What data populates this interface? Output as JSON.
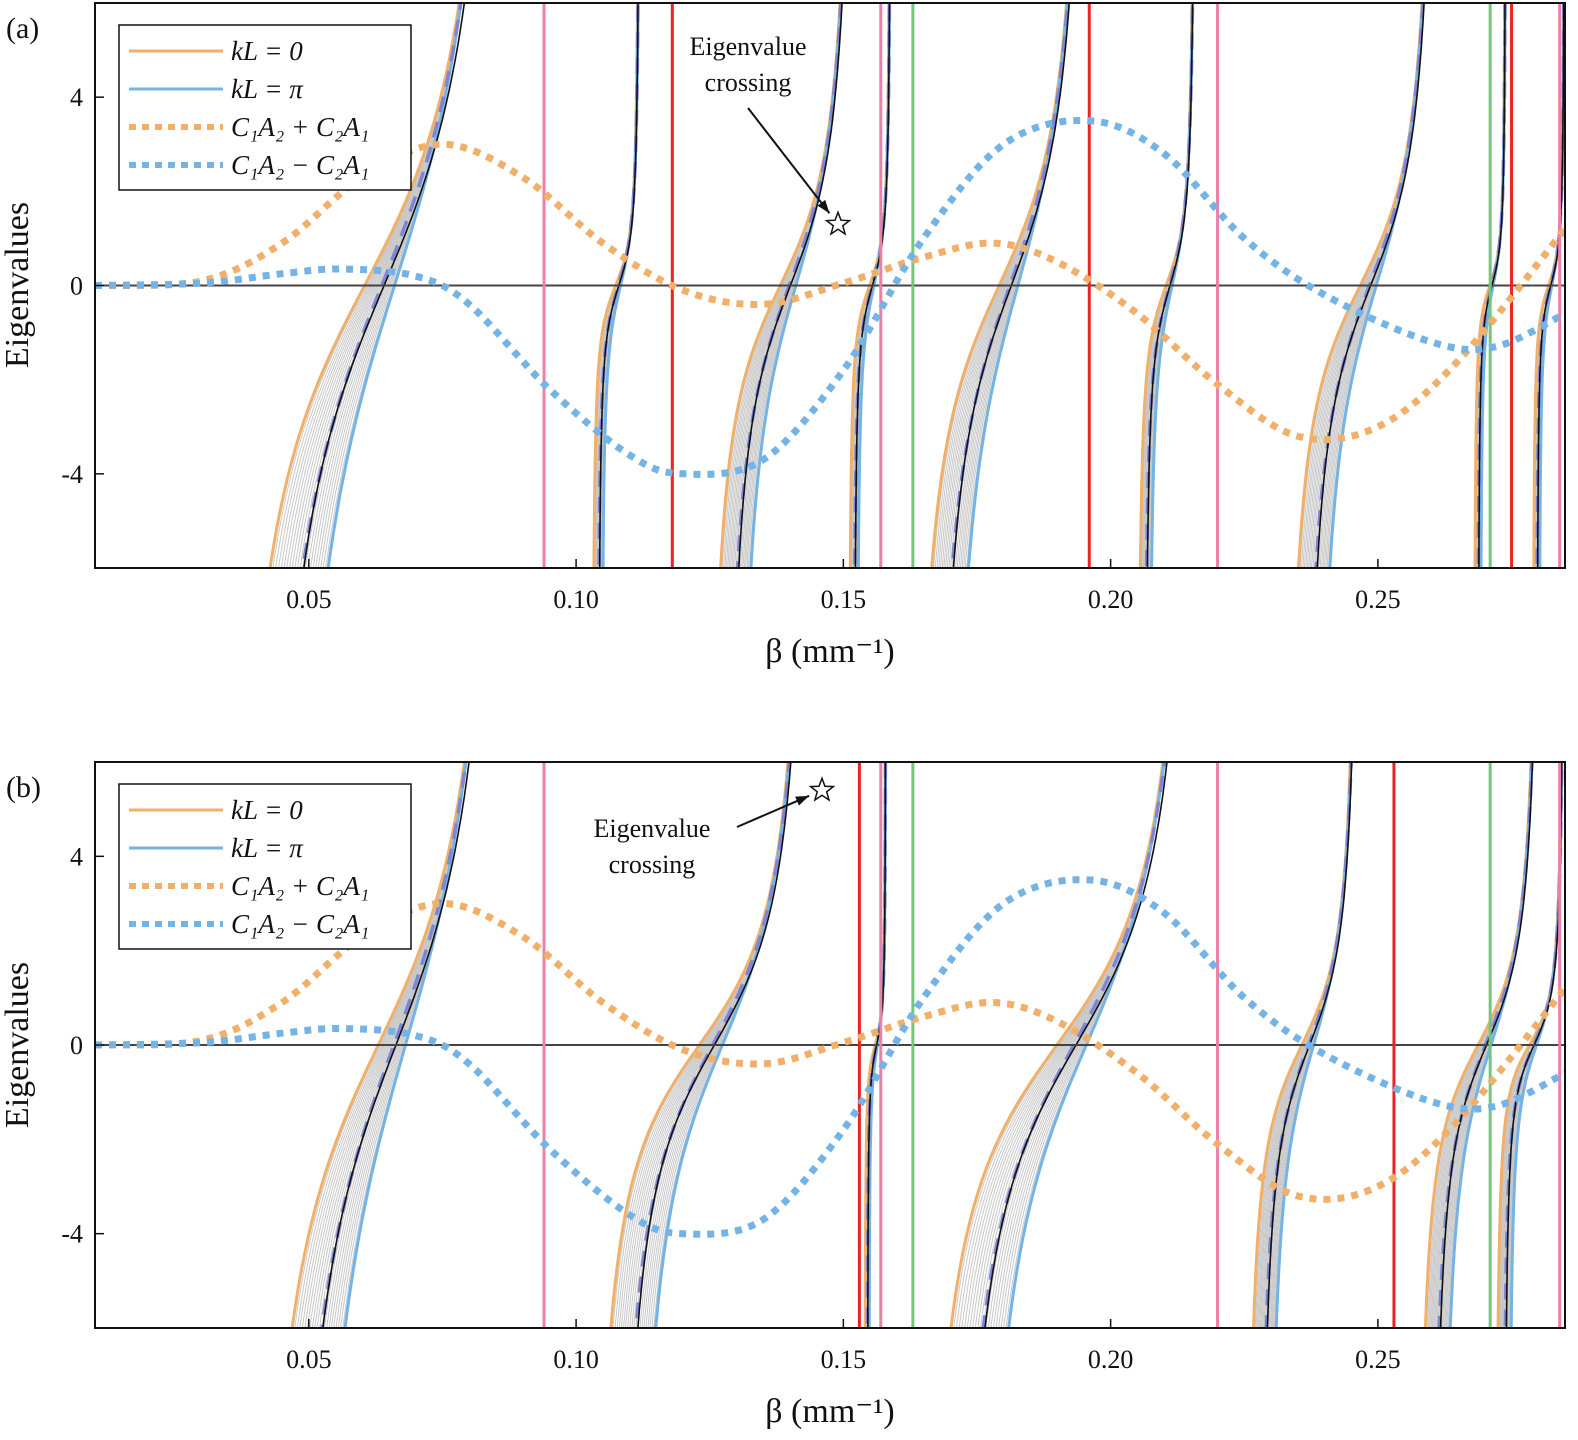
{
  "colors": {
    "kL0": "#f0b06a",
    "kLpi": "#74b3e6",
    "sumDot": "#f0b06a",
    "diffDot": "#74b3e6",
    "band": "#c8c8c8",
    "red": "#ee2222",
    "pink": "#f07fa6",
    "green": "#72c77a",
    "dashed": "#7d86d6",
    "black": "#111111"
  },
  "chart_data": [
    {
      "type": "line",
      "panel_label": "(a)",
      "xlabel": "β (mm⁻¹)",
      "ylabel": "Eigenvalues",
      "xlim": [
        0.01,
        0.285
      ],
      "ylim": [
        -6,
        6
      ],
      "xticks": [
        0.05,
        0.1,
        0.15,
        0.2,
        0.25
      ],
      "xtick_labels": [
        "0.05",
        "0.10",
        "0.15",
        "0.20",
        "0.25"
      ],
      "yticks": [
        -4,
        0,
        4
      ],
      "ytick_labels": [
        "-4",
        "0",
        "4"
      ],
      "legend": {
        "placement": "top-left",
        "entries": [
          {
            "label": "kL = 0",
            "style": "solid",
            "color_key": "kL0"
          },
          {
            "label": "kL = π",
            "style": "solid",
            "color_key": "kLpi"
          },
          {
            "label": "C₁A₂ + C₂A₁",
            "style": "dotted",
            "color_key": "sumDot"
          },
          {
            "label": "C₁A₂ − C₂A₁",
            "style": "dotted",
            "color_key": "diffDot"
          }
        ]
      },
      "annotation": {
        "lines": [
          "Eigenvalue",
          "crossing"
        ],
        "marker": "star",
        "x": 0.149,
        "y": 1.3
      },
      "vertical_lines": [
        {
          "x": 0.094,
          "color_key": "pink"
        },
        {
          "x": 0.118,
          "color_key": "red"
        },
        {
          "x": 0.157,
          "color_key": "pink"
        },
        {
          "x": 0.163,
          "color_key": "green"
        },
        {
          "x": 0.196,
          "color_key": "red"
        },
        {
          "x": 0.22,
          "color_key": "pink"
        },
        {
          "x": 0.271,
          "color_key": "green"
        },
        {
          "x": 0.275,
          "color_key": "red"
        },
        {
          "x": 0.284,
          "color_key": "pink"
        }
      ],
      "dotted_series": [
        {
          "color_key": "sumDot",
          "x": [
            0.01,
            0.03,
            0.045,
            0.06,
            0.075,
            0.09,
            0.105,
            0.12,
            0.135,
            0.15,
            0.165,
            0.178,
            0.19,
            0.205,
            0.22,
            0.235,
            0.25,
            0.265,
            0.285
          ],
          "y": [
            0,
            0.1,
            0.9,
            2.3,
            3.0,
            2.3,
            0.9,
            -0.1,
            -0.4,
            0.05,
            0.6,
            0.9,
            0.5,
            -0.6,
            -2.1,
            -3.2,
            -3.0,
            -1.6,
            1.2
          ]
        },
        {
          "color_key": "diffDot",
          "x": [
            0.01,
            0.03,
            0.045,
            0.056,
            0.07,
            0.08,
            0.095,
            0.11,
            0.12,
            0.135,
            0.15,
            0.165,
            0.18,
            0.196,
            0.21,
            0.225,
            0.24,
            0.26,
            0.272,
            0.285
          ],
          "y": [
            0,
            0.05,
            0.25,
            0.35,
            0.2,
            -0.4,
            -2.2,
            -3.6,
            -4.0,
            -3.7,
            -1.8,
            1.0,
            3.0,
            3.5,
            2.8,
            1.0,
            -0.2,
            -1.2,
            -1.3,
            -0.6
          ]
        }
      ],
      "branches": [
        {
          "x0": 0.033,
          "x1": 0.089,
          "s": 7
        },
        {
          "x0": 0.103,
          "x1": 0.112,
          "s": 1.5
        },
        {
          "x0": 0.124,
          "x1": 0.153,
          "s": 4
        },
        {
          "x0": 0.151,
          "x1": 0.159,
          "s": 1.5
        },
        {
          "x0": 0.162,
          "x1": 0.197,
          "s": 5
        },
        {
          "x0": 0.205,
          "x1": 0.216,
          "s": 2
        },
        {
          "x0": 0.232,
          "x1": 0.262,
          "s": 4
        },
        {
          "x0": 0.268,
          "x1": 0.274,
          "s": 1.2
        },
        {
          "x0": 0.279,
          "x1": 0.285,
          "s": 1.2
        }
      ]
    },
    {
      "type": "line",
      "panel_label": "(b)",
      "xlabel": "β (mm⁻¹)",
      "ylabel": "Eigenvalues",
      "xlim": [
        0.01,
        0.285
      ],
      "ylim": [
        -6,
        6
      ],
      "xticks": [
        0.05,
        0.1,
        0.15,
        0.2,
        0.25
      ],
      "xtick_labels": [
        "0.05",
        "0.10",
        "0.15",
        "0.20",
        "0.25"
      ],
      "yticks": [
        -4,
        0,
        4
      ],
      "ytick_labels": [
        "-4",
        "0",
        "4"
      ],
      "legend": {
        "placement": "top-left",
        "entries": [
          {
            "label": "kL = 0",
            "style": "solid",
            "color_key": "kL0"
          },
          {
            "label": "kL = π",
            "style": "solid",
            "color_key": "kLpi"
          },
          {
            "label": "C₁A₂ + C₂A₁",
            "style": "dotted",
            "color_key": "sumDot"
          },
          {
            "label": "C₁A₂ − C₂A₁",
            "style": "dotted",
            "color_key": "diffDot"
          }
        ]
      },
      "annotation": {
        "lines": [
          "Eigenvalue",
          "crossing"
        ],
        "marker": "star",
        "x": 0.146,
        "y": 5.4
      },
      "vertical_lines": [
        {
          "x": 0.094,
          "color_key": "pink"
        },
        {
          "x": 0.153,
          "color_key": "red"
        },
        {
          "x": 0.157,
          "color_key": "pink"
        },
        {
          "x": 0.163,
          "color_key": "green"
        },
        {
          "x": 0.22,
          "color_key": "pink"
        },
        {
          "x": 0.253,
          "color_key": "red"
        },
        {
          "x": 0.271,
          "color_key": "green"
        },
        {
          "x": 0.284,
          "color_key": "pink"
        }
      ],
      "dotted_series": [
        {
          "color_key": "sumDot",
          "x": [
            0.01,
            0.03,
            0.045,
            0.06,
            0.075,
            0.09,
            0.105,
            0.12,
            0.135,
            0.15,
            0.165,
            0.178,
            0.19,
            0.205,
            0.22,
            0.235,
            0.25,
            0.265,
            0.285
          ],
          "y": [
            0,
            0.1,
            0.9,
            2.3,
            3.0,
            2.3,
            0.9,
            -0.1,
            -0.4,
            0.05,
            0.6,
            0.9,
            0.5,
            -0.6,
            -2.1,
            -3.2,
            -3.0,
            -1.6,
            1.2
          ]
        },
        {
          "color_key": "diffDot",
          "x": [
            0.01,
            0.03,
            0.045,
            0.056,
            0.07,
            0.08,
            0.095,
            0.11,
            0.12,
            0.135,
            0.15,
            0.165,
            0.18,
            0.196,
            0.21,
            0.225,
            0.24,
            0.26,
            0.272,
            0.285
          ],
          "y": [
            0,
            0.05,
            0.25,
            0.35,
            0.2,
            -0.4,
            -2.2,
            -3.6,
            -4.0,
            -3.7,
            -1.8,
            1.0,
            3.0,
            3.5,
            2.8,
            1.0,
            -0.2,
            -1.2,
            -1.3,
            -0.6
          ]
        }
      ],
      "branches": [
        {
          "x0": 0.038,
          "x1": 0.089,
          "s": 7
        },
        {
          "x0": 0.102,
          "x1": 0.145,
          "s": 4
        },
        {
          "x0": 0.154,
          "x1": 0.158,
          "s": 1
        },
        {
          "x0": 0.163,
          "x1": 0.218,
          "s": 5
        },
        {
          "x0": 0.225,
          "x1": 0.247,
          "s": 3
        },
        {
          "x0": 0.257,
          "x1": 0.281,
          "s": 3
        },
        {
          "x0": 0.272,
          "x1": 0.285,
          "s": 1.5
        }
      ]
    }
  ]
}
